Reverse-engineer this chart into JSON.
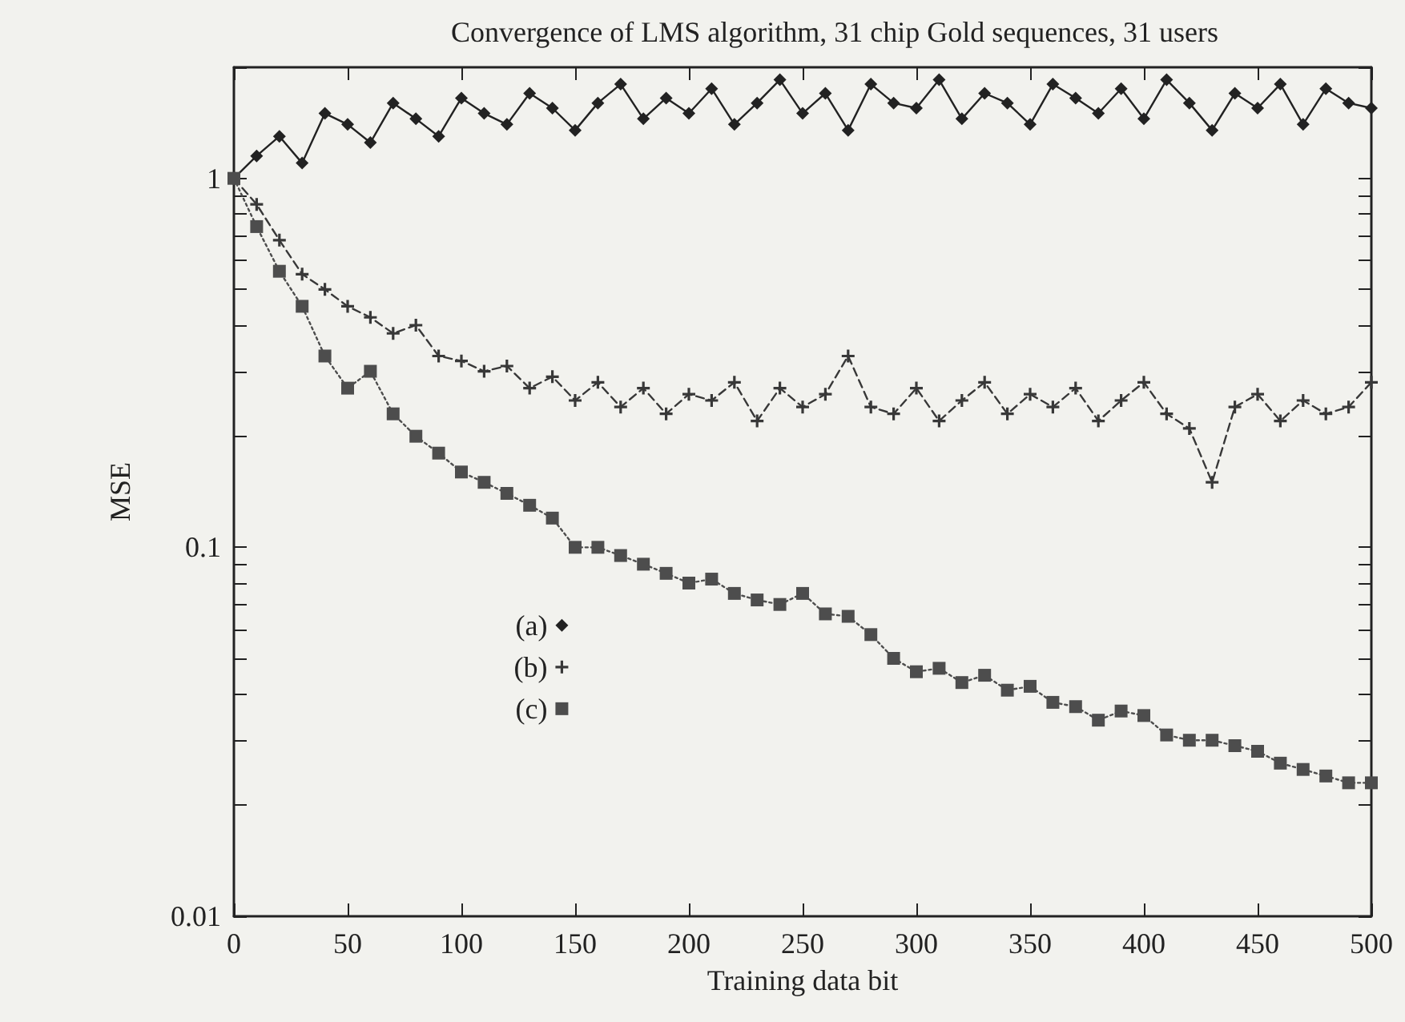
{
  "chart_data": {
    "type": "line",
    "title": "Convergence of LMS algorithm, 31 chip Gold sequences, 31 users",
    "xlabel": "Training data bit",
    "ylabel": "MSE",
    "x": [
      0,
      10,
      20,
      30,
      40,
      50,
      60,
      70,
      80,
      90,
      100,
      110,
      120,
      130,
      140,
      150,
      160,
      170,
      180,
      190,
      200,
      210,
      220,
      230,
      240,
      250,
      260,
      270,
      280,
      290,
      300,
      310,
      320,
      330,
      340,
      350,
      360,
      370,
      380,
      390,
      400,
      410,
      420,
      430,
      440,
      450,
      460,
      470,
      480,
      490,
      500
    ],
    "series": [
      {
        "name": "(a)",
        "color": "#222222",
        "marker": "diamond",
        "line_style": "solid",
        "values": [
          1.0,
          1.15,
          1.3,
          1.1,
          1.5,
          1.4,
          1.25,
          1.6,
          1.45,
          1.3,
          1.65,
          1.5,
          1.4,
          1.7,
          1.55,
          1.35,
          1.6,
          1.8,
          1.45,
          1.65,
          1.5,
          1.75,
          1.4,
          1.6,
          1.85,
          1.5,
          1.7,
          1.35,
          1.8,
          1.6,
          1.55,
          1.85,
          1.45,
          1.7,
          1.6,
          1.4,
          1.8,
          1.65,
          1.5,
          1.75,
          1.45,
          1.85,
          1.6,
          1.35,
          1.7,
          1.55,
          1.8,
          1.4,
          1.75,
          1.6,
          1.55
        ]
      },
      {
        "name": "(b)",
        "color": "#383838",
        "marker": "cross",
        "line_style": "dashed",
        "values": [
          1.0,
          0.85,
          0.68,
          0.55,
          0.5,
          0.45,
          0.42,
          0.38,
          0.4,
          0.33,
          0.32,
          0.3,
          0.31,
          0.27,
          0.29,
          0.25,
          0.28,
          0.24,
          0.27,
          0.23,
          0.26,
          0.25,
          0.28,
          0.22,
          0.27,
          0.24,
          0.26,
          0.33,
          0.24,
          0.23,
          0.27,
          0.22,
          0.25,
          0.28,
          0.23,
          0.26,
          0.24,
          0.27,
          0.22,
          0.25,
          0.28,
          0.23,
          0.21,
          0.15,
          0.24,
          0.26,
          0.22,
          0.25,
          0.23,
          0.24,
          0.28
        ]
      },
      {
        "name": "(c)",
        "color": "#4d4d4d",
        "marker": "square",
        "line_style": "dotted",
        "values": [
          1.0,
          0.74,
          0.56,
          0.45,
          0.33,
          0.27,
          0.3,
          0.23,
          0.2,
          0.18,
          0.16,
          0.15,
          0.14,
          0.13,
          0.12,
          0.1,
          0.1,
          0.095,
          0.09,
          0.085,
          0.08,
          0.082,
          0.075,
          0.072,
          0.07,
          0.075,
          0.066,
          0.065,
          0.058,
          0.05,
          0.046,
          0.047,
          0.043,
          0.045,
          0.041,
          0.042,
          0.038,
          0.037,
          0.034,
          0.036,
          0.035,
          0.031,
          0.03,
          0.03,
          0.029,
          0.028,
          0.026,
          0.025,
          0.024,
          0.023,
          0.023
        ]
      }
    ],
    "xlim": [
      0,
      500
    ],
    "xticks": [
      0,
      50,
      100,
      150,
      200,
      250,
      300,
      350,
      400,
      450,
      500
    ],
    "ylim": [
      0.01,
      2
    ],
    "log": true,
    "yticks": [
      0.01,
      {
        "value": 0.02,
        "label": null
      },
      {
        "value": 0.03,
        "label": null
      },
      {
        "value": 0.04,
        "label": null
      },
      {
        "value": 0.05,
        "label": null
      },
      {
        "value": 0.06,
        "label": null
      },
      {
        "value": 0.07,
        "label": null
      },
      {
        "value": 0.08,
        "label": null
      },
      {
        "value": 0.09,
        "label": null
      },
      0.1,
      {
        "value": 0.2,
        "label": null
      },
      {
        "value": 0.3,
        "label": null
      },
      {
        "value": 0.4,
        "label": null
      },
      {
        "value": 0.5,
        "label": null
      },
      {
        "value": 0.6,
        "label": null
      },
      {
        "value": 0.7,
        "label": null
      },
      {
        "value": 0.8,
        "label": null
      },
      {
        "value": 0.9,
        "label": null
      },
      1,
      {
        "value": 2,
        "label": null
      }
    ],
    "grid": false,
    "legend": "bottom left"
  }
}
